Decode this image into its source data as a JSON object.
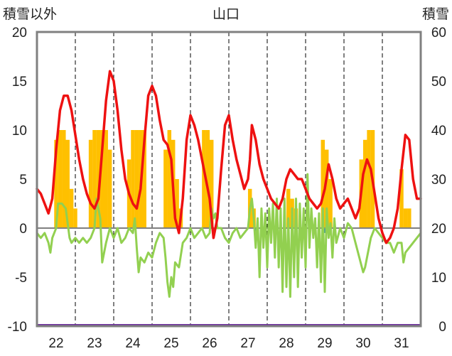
{
  "chart_data": {
    "type": "bar+line",
    "title": "山口",
    "left_axis_label": "積雪以外",
    "right_axis_label": "積雪",
    "left_ylim": [
      -10,
      20
    ],
    "left_yticks": [
      "20",
      "15",
      "10",
      "5",
      "0",
      "-5",
      "-10"
    ],
    "right_ylim": [
      0,
      60
    ],
    "right_yticks": [
      "60",
      "50",
      "40",
      "30",
      "20",
      "10",
      "0"
    ],
    "x_range": [
      21.5,
      31.5
    ],
    "x_ticks": [
      "22",
      "23",
      "24",
      "25",
      "26",
      "27",
      "28",
      "29",
      "30",
      "31"
    ],
    "grid": "vertical dashed at day boundaries",
    "colors": {
      "temperature": "#ee1111",
      "humidity_line": "#92d050",
      "precip_bars": "#ffc000",
      "snow_baseline": "#7030a0",
      "small_bars": "#1f7fbf",
      "zero_line": "#808080",
      "frame": "#808080"
    },
    "precip_bars": [
      [
        22.0,
        9
      ],
      [
        22.1,
        10
      ],
      [
        22.2,
        10
      ],
      [
        22.3,
        9
      ],
      [
        22.4,
        4
      ],
      [
        22.5,
        2
      ],
      [
        22.9,
        9
      ],
      [
        23.0,
        10
      ],
      [
        23.1,
        10
      ],
      [
        23.2,
        10
      ],
      [
        23.3,
        10
      ],
      [
        23.4,
        8
      ],
      [
        23.9,
        7
      ],
      [
        24.0,
        10
      ],
      [
        24.1,
        10
      ],
      [
        24.2,
        10
      ],
      [
        24.3,
        10
      ],
      [
        24.85,
        8
      ],
      [
        24.95,
        10
      ],
      [
        25.05,
        9
      ],
      [
        25.15,
        5
      ],
      [
        25.25,
        2
      ],
      [
        25.85,
        10
      ],
      [
        25.95,
        10
      ],
      [
        26.05,
        9
      ],
      [
        27.05,
        4
      ],
      [
        27.15,
        2
      ],
      [
        28.05,
        4
      ],
      [
        28.15,
        3
      ],
      [
        28.25,
        2
      ],
      [
        28.95,
        9
      ],
      [
        29.05,
        8
      ],
      [
        29.15,
        5
      ],
      [
        29.95,
        7
      ],
      [
        30.05,
        9
      ],
      [
        30.15,
        10
      ],
      [
        30.25,
        10
      ],
      [
        31.0,
        6
      ],
      [
        31.1,
        2
      ],
      [
        31.2,
        2
      ]
    ],
    "temperature": [
      [
        21.5,
        4
      ],
      [
        21.6,
        3.5
      ],
      [
        21.7,
        2.5
      ],
      [
        21.8,
        1.5
      ],
      [
        21.9,
        3
      ],
      [
        22.0,
        8
      ],
      [
        22.1,
        12
      ],
      [
        22.2,
        13.5
      ],
      [
        22.3,
        13.5
      ],
      [
        22.4,
        12
      ],
      [
        22.5,
        9.5
      ],
      [
        22.6,
        7
      ],
      [
        22.7,
        5
      ],
      [
        22.8,
        3.5
      ],
      [
        22.9,
        2.5
      ],
      [
        23.0,
        2
      ],
      [
        23.1,
        3
      ],
      [
        23.2,
        8
      ],
      [
        23.3,
        13
      ],
      [
        23.4,
        16
      ],
      [
        23.5,
        15
      ],
      [
        23.6,
        12
      ],
      [
        23.7,
        8
      ],
      [
        23.8,
        5
      ],
      [
        23.9,
        3.5
      ],
      [
        24.0,
        2.5
      ],
      [
        24.1,
        2
      ],
      [
        24.2,
        4
      ],
      [
        24.3,
        9
      ],
      [
        24.4,
        13.5
      ],
      [
        24.5,
        14.5
      ],
      [
        24.6,
        13.5
      ],
      [
        24.7,
        11
      ],
      [
        24.8,
        9
      ],
      [
        24.9,
        8.5
      ],
      [
        25.0,
        7
      ],
      [
        25.1,
        1
      ],
      [
        25.2,
        -0.5
      ],
      [
        25.3,
        3
      ],
      [
        25.4,
        9
      ],
      [
        25.5,
        11.5
      ],
      [
        25.6,
        10.5
      ],
      [
        25.7,
        9
      ],
      [
        25.8,
        7
      ],
      [
        25.9,
        5
      ],
      [
        26.0,
        3
      ],
      [
        26.1,
        -1
      ],
      [
        26.2,
        1
      ],
      [
        26.3,
        6
      ],
      [
        26.4,
        10.5
      ],
      [
        26.5,
        11.5
      ],
      [
        26.6,
        9
      ],
      [
        26.7,
        7
      ],
      [
        26.8,
        5.5
      ],
      [
        26.9,
        4
      ],
      [
        27.0,
        5
      ],
      [
        27.05,
        7
      ],
      [
        27.1,
        10.5
      ],
      [
        27.2,
        9
      ],
      [
        27.3,
        6.5
      ],
      [
        27.4,
        5
      ],
      [
        27.5,
        4
      ],
      [
        27.6,
        3
      ],
      [
        27.7,
        2.5
      ],
      [
        27.8,
        2
      ],
      [
        27.9,
        3
      ],
      [
        28.0,
        5
      ],
      [
        28.1,
        6
      ],
      [
        28.2,
        5.5
      ],
      [
        28.3,
        5
      ],
      [
        28.4,
        5
      ],
      [
        28.5,
        4
      ],
      [
        28.6,
        3
      ],
      [
        28.7,
        2.5
      ],
      [
        28.8,
        2
      ],
      [
        28.9,
        2.5
      ],
      [
        29.0,
        4
      ],
      [
        29.1,
        6.5
      ],
      [
        29.2,
        5
      ],
      [
        29.3,
        3
      ],
      [
        29.4,
        2
      ],
      [
        29.5,
        2.5
      ],
      [
        29.6,
        3
      ],
      [
        29.7,
        2
      ],
      [
        29.8,
        1
      ],
      [
        29.9,
        2
      ],
      [
        30.0,
        5.5
      ],
      [
        30.1,
        7
      ],
      [
        30.2,
        6
      ],
      [
        30.3,
        3.5
      ],
      [
        30.4,
        1
      ],
      [
        30.5,
        -0.5
      ],
      [
        30.6,
        -1.5
      ],
      [
        30.7,
        -1
      ],
      [
        30.8,
        0
      ],
      [
        30.9,
        2
      ],
      [
        31.0,
        6
      ],
      [
        31.1,
        9.5
      ],
      [
        31.2,
        9
      ],
      [
        31.3,
        5
      ],
      [
        31.4,
        3
      ],
      [
        31.5,
        3
      ]
    ],
    "humidity": [
      [
        21.5,
        -0.5
      ],
      [
        21.6,
        -1
      ],
      [
        21.7,
        -0.5
      ],
      [
        21.8,
        -1.5
      ],
      [
        21.85,
        -2.5
      ],
      [
        21.9,
        -1
      ],
      [
        22.0,
        0
      ],
      [
        22.05,
        2.5
      ],
      [
        22.15,
        2.5
      ],
      [
        22.25,
        2
      ],
      [
        22.35,
        -1
      ],
      [
        22.4,
        -1.5
      ],
      [
        22.5,
        -1
      ],
      [
        22.6,
        -1.5
      ],
      [
        22.7,
        -1
      ],
      [
        22.8,
        -1.5
      ],
      [
        22.9,
        -1
      ],
      [
        23.0,
        0
      ],
      [
        23.05,
        3
      ],
      [
        23.15,
        1
      ],
      [
        23.2,
        -3.5
      ],
      [
        23.3,
        -1.5
      ],
      [
        23.4,
        0
      ],
      [
        23.5,
        -1
      ],
      [
        23.6,
        0
      ],
      [
        23.7,
        -1.5
      ],
      [
        23.8,
        -1
      ],
      [
        23.9,
        0
      ],
      [
        24.0,
        -0.5
      ],
      [
        24.05,
        1
      ],
      [
        24.1,
        -2
      ],
      [
        24.15,
        -4.5
      ],
      [
        24.2,
        -3
      ],
      [
        24.3,
        -3.5
      ],
      [
        24.4,
        -2.5
      ],
      [
        24.5,
        -3
      ],
      [
        24.6,
        -1.5
      ],
      [
        24.7,
        -0.5
      ],
      [
        24.8,
        -1
      ],
      [
        24.85,
        -3
      ],
      [
        24.9,
        -5.5
      ],
      [
        24.95,
        -7
      ],
      [
        25.0,
        -5
      ],
      [
        25.05,
        -6
      ],
      [
        25.1,
        -3.5
      ],
      [
        25.2,
        -4
      ],
      [
        25.3,
        -1.5
      ],
      [
        25.4,
        -1
      ],
      [
        25.5,
        0
      ],
      [
        25.6,
        -1
      ],
      [
        25.7,
        -0.5
      ],
      [
        25.8,
        0
      ],
      [
        25.9,
        -1
      ],
      [
        26.0,
        -0.5
      ],
      [
        26.05,
        2
      ],
      [
        26.1,
        1
      ],
      [
        26.15,
        1.5
      ],
      [
        26.2,
        0
      ],
      [
        26.3,
        0
      ],
      [
        26.4,
        -1
      ],
      [
        26.5,
        -1.5
      ],
      [
        26.6,
        -0.5
      ],
      [
        26.7,
        0
      ],
      [
        26.8,
        -1
      ],
      [
        26.9,
        -0.5
      ],
      [
        27.0,
        0
      ],
      [
        27.05,
        2
      ],
      [
        27.1,
        3
      ],
      [
        27.15,
        1
      ],
      [
        27.2,
        -2
      ],
      [
        27.25,
        1
      ],
      [
        27.3,
        -5
      ],
      [
        27.35,
        2
      ],
      [
        27.4,
        -2
      ],
      [
        27.45,
        1.5
      ],
      [
        27.5,
        -4
      ],
      [
        27.55,
        2
      ],
      [
        27.6,
        -1.5
      ],
      [
        27.65,
        2.5
      ],
      [
        27.7,
        -3
      ],
      [
        27.75,
        3
      ],
      [
        27.8,
        -4
      ],
      [
        27.85,
        2
      ],
      [
        27.9,
        -6.5
      ],
      [
        27.95,
        3
      ],
      [
        28.0,
        -6
      ],
      [
        28.05,
        1
      ],
      [
        28.1,
        -7
      ],
      [
        28.15,
        2
      ],
      [
        28.2,
        -5
      ],
      [
        28.25,
        3
      ],
      [
        28.3,
        -6
      ],
      [
        28.35,
        2.5
      ],
      [
        28.4,
        -3
      ],
      [
        28.45,
        2
      ],
      [
        28.5,
        -4
      ],
      [
        28.55,
        5.5
      ],
      [
        28.6,
        -2
      ],
      [
        28.65,
        2
      ],
      [
        28.7,
        -1
      ],
      [
        28.75,
        1
      ],
      [
        28.8,
        -4
      ],
      [
        28.85,
        1.5
      ],
      [
        28.9,
        -5.5
      ],
      [
        28.95,
        2
      ],
      [
        29.0,
        -6.5
      ],
      [
        29.05,
        2
      ],
      [
        29.1,
        -1
      ],
      [
        29.15,
        0.5
      ],
      [
        29.2,
        -3
      ],
      [
        29.25,
        1
      ],
      [
        29.3,
        -1.5
      ],
      [
        29.4,
        0
      ],
      [
        29.5,
        -1
      ],
      [
        29.6,
        0.5
      ],
      [
        29.7,
        0
      ],
      [
        29.8,
        -1.5
      ],
      [
        29.9,
        -3
      ],
      [
        30.0,
        -4.5
      ],
      [
        30.05,
        -4
      ],
      [
        30.1,
        -3
      ],
      [
        30.2,
        -1
      ],
      [
        30.3,
        0
      ],
      [
        30.4,
        -0.5
      ],
      [
        30.5,
        -1
      ],
      [
        30.6,
        -1.5
      ],
      [
        30.7,
        -1.5
      ],
      [
        30.8,
        -2.5
      ],
      [
        30.9,
        -1.5
      ],
      [
        31.0,
        -1.5
      ],
      [
        31.05,
        -3.5
      ],
      [
        31.1,
        -2.5
      ],
      [
        31.2,
        -2
      ],
      [
        31.3,
        -1.5
      ],
      [
        31.4,
        -1
      ],
      [
        31.5,
        -0.5
      ]
    ],
    "small_bars": [
      [
        27.2,
        -0.5
      ],
      [
        28.7,
        -0.5
      ],
      [
        29.0,
        -0.5
      ]
    ]
  }
}
